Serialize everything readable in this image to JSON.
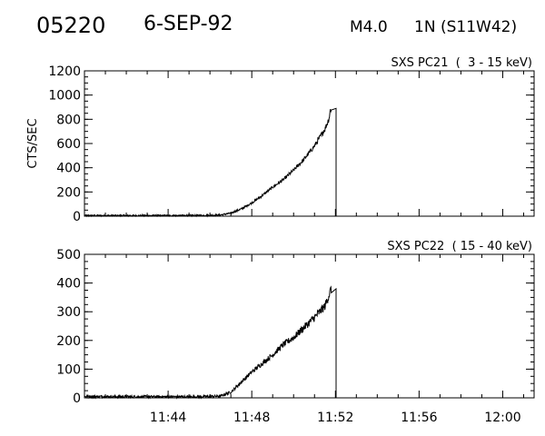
{
  "header": {
    "event_id": "05220",
    "date": "6-SEP-92",
    "flare_class": "M4.0",
    "importance": "1N",
    "location": "(S11W42)"
  },
  "chart_data": [
    {
      "type": "line",
      "title": "SXS PC21  (  3 - 15 keV)",
      "ylabel": "CTS/SEC",
      "xlabel": "",
      "x_units": "minutes since 11:40 UT",
      "xlim": [
        0,
        21.5
      ],
      "ylim": [
        0,
        1200
      ],
      "y_ticks": [
        0,
        200,
        400,
        600,
        800,
        1000,
        1200
      ],
      "x_ticks": [
        {
          "value": 4,
          "label": "11:44"
        },
        {
          "value": 8,
          "label": "11:48"
        },
        {
          "value": 12,
          "label": "11:52"
        },
        {
          "value": 16,
          "label": "11:56"
        },
        {
          "value": 20,
          "label": "12:00"
        }
      ],
      "series": [
        {
          "name": "SXS PC21",
          "x": [
            0,
            2,
            4,
            5.5,
            6.5,
            7,
            7.5,
            8,
            8.5,
            9,
            9.5,
            10,
            10.5,
            11,
            11.5,
            11.7,
            11.75,
            11.8
          ],
          "y": [
            5,
            5,
            5,
            6,
            10,
            25,
            60,
            110,
            170,
            240,
            300,
            380,
            470,
            580,
            720,
            810,
            870,
            890
          ],
          "noise": 18,
          "drop_at": 12.03
        }
      ]
    },
    {
      "type": "line",
      "title": "SXS PC22  ( 15 - 40 keV)",
      "ylabel": "",
      "xlabel": "",
      "x_units": "minutes since 11:40 UT",
      "xlim": [
        0,
        21.5
      ],
      "ylim": [
        0,
        500
      ],
      "y_ticks": [
        0,
        100,
        200,
        300,
        400,
        500
      ],
      "x_ticks": [
        {
          "value": 4,
          "label": "11:44"
        },
        {
          "value": 8,
          "label": "11:48"
        },
        {
          "value": 12,
          "label": "11:52"
        },
        {
          "value": 16,
          "label": "11:56"
        },
        {
          "value": 20,
          "label": "12:00"
        }
      ],
      "series": [
        {
          "name": "SXS PC22",
          "x": [
            0,
            2,
            4,
            5.5,
            6.5,
            7,
            7.5,
            8,
            8.5,
            9,
            9.5,
            10,
            10.5,
            11,
            11.5,
            11.7,
            11.8
          ],
          "y": [
            5,
            4,
            4,
            4,
            6,
            20,
            55,
            90,
            120,
            150,
            185,
            210,
            245,
            280,
            320,
            360,
            380
          ],
          "noise": 12,
          "drop_at": 12.03
        }
      ]
    }
  ]
}
